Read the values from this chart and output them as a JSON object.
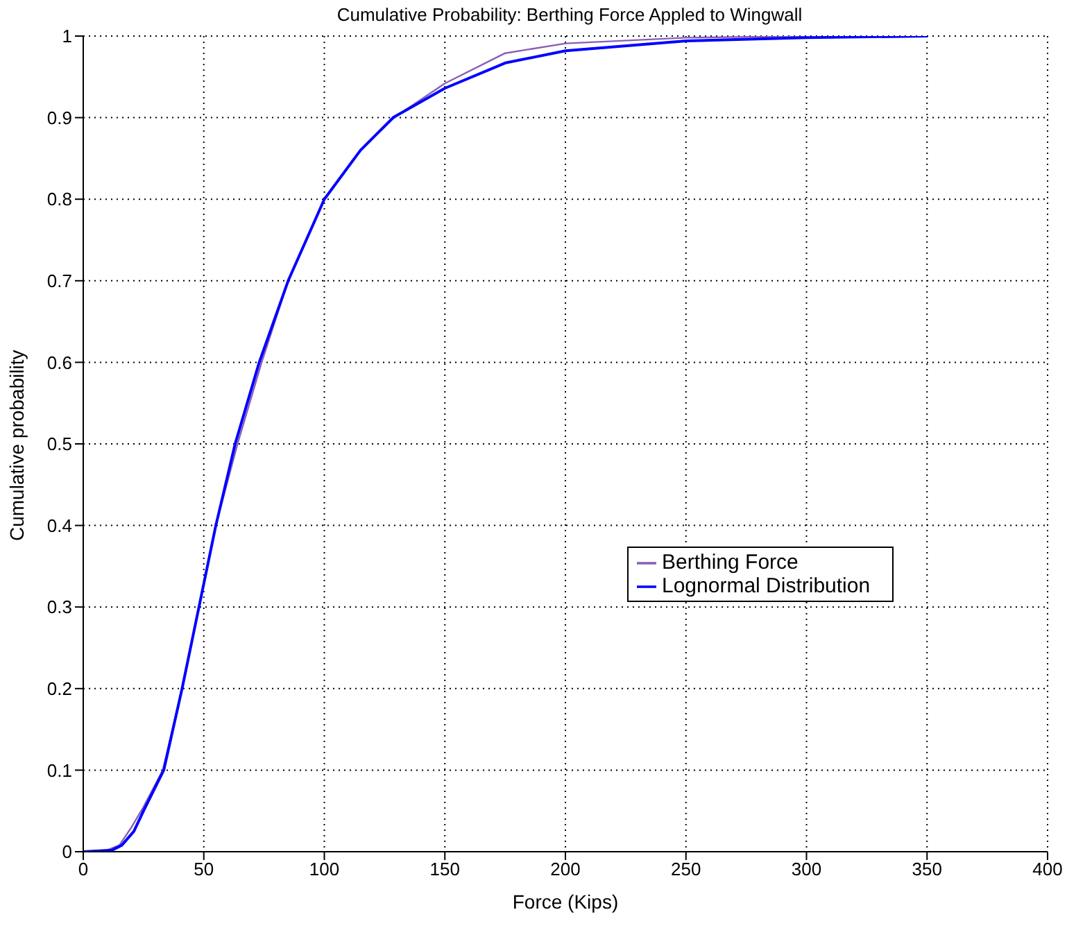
{
  "chart_data": {
    "type": "line",
    "title": "Cumulative Probability: Berthing Force Appled to Wingwall",
    "xlabel": "Force (Kips)",
    "ylabel": "Cumulative probability",
    "xlim": [
      0,
      400
    ],
    "xticks": [
      0,
      50,
      100,
      150,
      200,
      250,
      300,
      350,
      400
    ],
    "ylim": [
      0,
      1
    ],
    "yticks": [
      0,
      0.1,
      0.2,
      0.3,
      0.4,
      0.5,
      0.6,
      0.7,
      0.8,
      0.9,
      1
    ],
    "grid": true,
    "legend": "right",
    "series": [
      {
        "name": "Berthing Force",
        "color": "#8a5cb8",
        "x": [
          0,
          10,
          15,
          20,
          25,
          33,
          41,
          48,
          55,
          64,
          74,
          85,
          100,
          115,
          129,
          150,
          175,
          200,
          250,
          300
        ],
        "values": [
          0,
          0.002,
          0.008,
          0.03,
          0.055,
          0.1,
          0.2,
          0.3,
          0.4,
          0.5,
          0.6,
          0.7,
          0.8,
          0.86,
          0.9,
          0.942,
          0.979,
          0.991,
          0.998,
          1
        ]
      },
      {
        "name": "Lognormal Distribution",
        "color": "#0000ff",
        "x": [
          0,
          12,
          16,
          21,
          25,
          33.4,
          41,
          48,
          55,
          63,
          73,
          85,
          100,
          115,
          128.5,
          150,
          175,
          200,
          250,
          300,
          350
        ],
        "values": [
          0,
          0.002,
          0.008,
          0.025,
          0.05,
          0.1,
          0.2,
          0.3,
          0.4,
          0.5,
          0.6,
          0.7,
          0.8,
          0.86,
          0.9,
          0.936,
          0.967,
          0.982,
          0.994,
          0.998,
          1
        ]
      }
    ]
  }
}
